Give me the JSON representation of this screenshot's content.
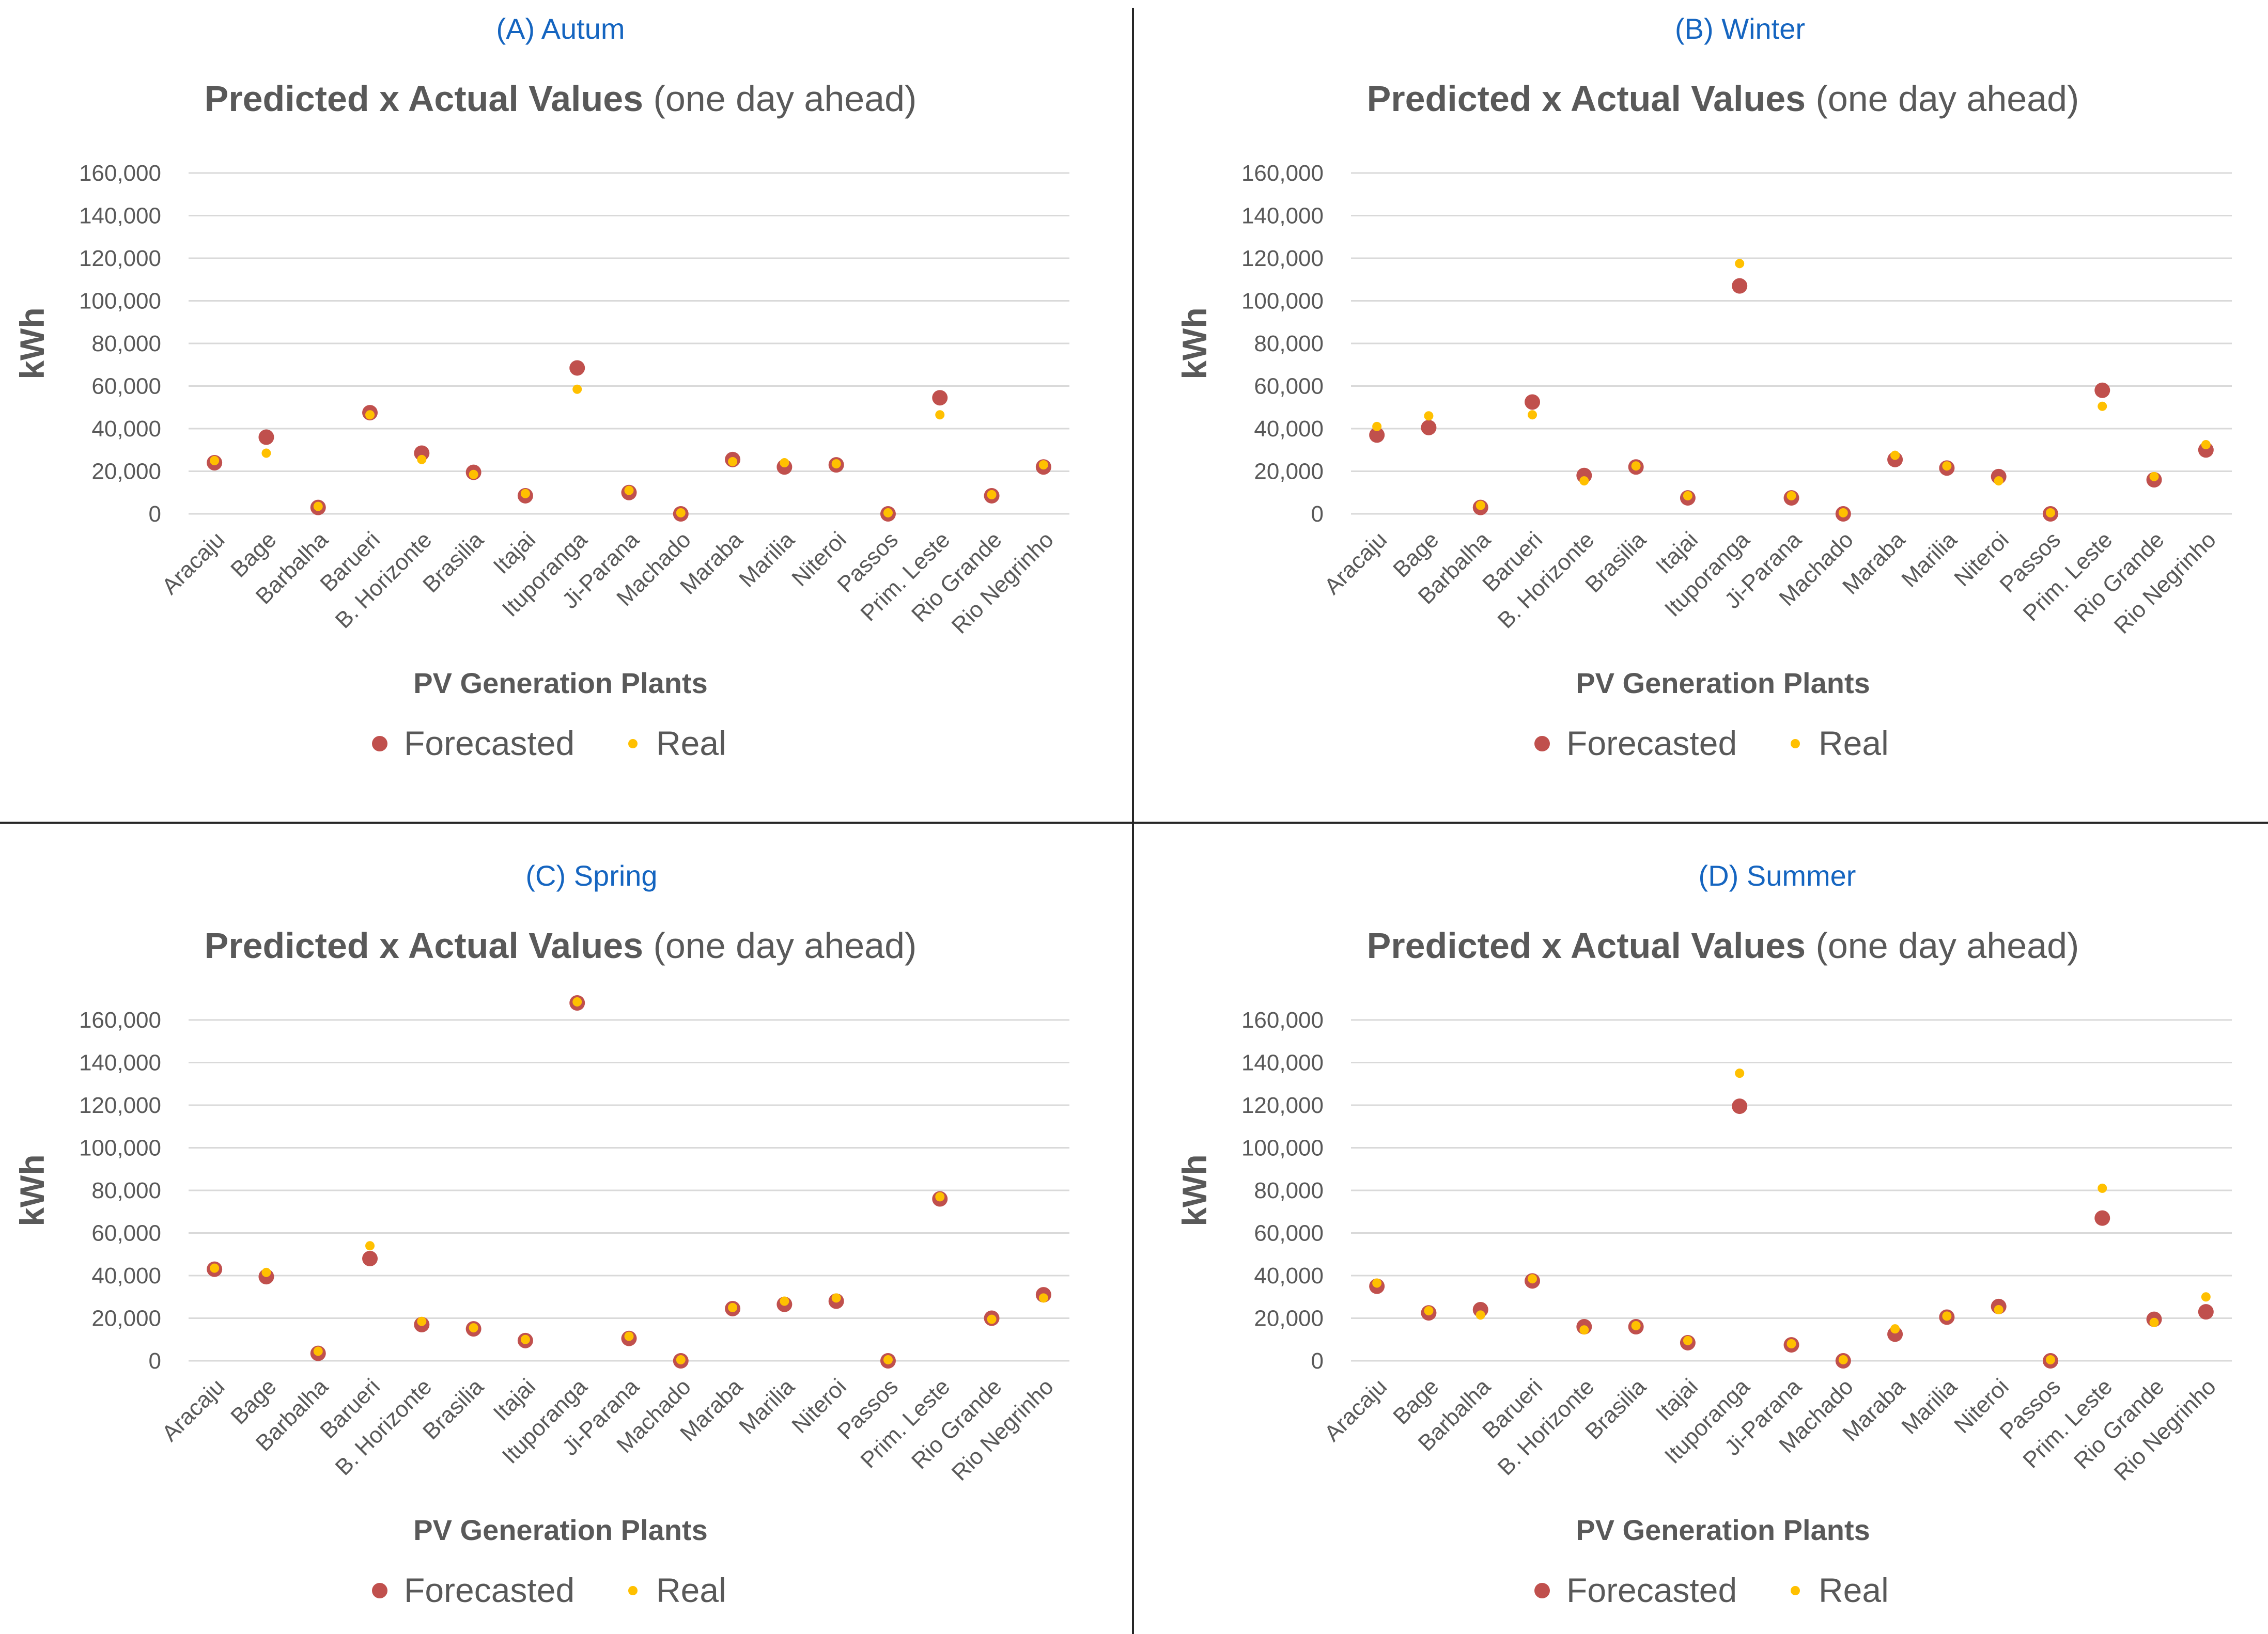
{
  "chart_data": [
    {
      "type": "scatter",
      "panel_label": "(A) Autum",
      "title": "Predicted x Actual Values",
      "title_suffix": "(one day ahead)",
      "xlabel": "PV Generation Plants",
      "ylabel": "kWh",
      "ylim": [
        0,
        160000
      ],
      "yticks": [
        "0",
        "20,000",
        "40,000",
        "60,000",
        "80,000",
        "100,000",
        "120,000",
        "140,000",
        "160,000"
      ],
      "categories": [
        "Aracaju",
        "Bage",
        "Barbalha",
        "Barueri",
        "B. Horizonte",
        "Brasilia",
        "Itajai",
        "Ituporanga",
        "Ji-Parana",
        "Machado",
        "Maraba",
        "Marilia",
        "Niteroi",
        "Passos",
        "Prim. Leste",
        "Rio Grande",
        "Rio Negrinho"
      ],
      "series": [
        {
          "name": "Forecasted",
          "color": "#C0504D",
          "values": [
            24000,
            36000,
            3000,
            47500,
            28500,
            19500,
            8500,
            68500,
            10000,
            0,
            25500,
            22000,
            23000,
            0,
            54500,
            8500,
            22000
          ]
        },
        {
          "name": "Real",
          "color": "#FFC000",
          "values": [
            25000,
            28500,
            3500,
            46500,
            25500,
            18500,
            9500,
            58500,
            11000,
            500,
            24500,
            24000,
            23500,
            500,
            46500,
            9000,
            23000
          ]
        }
      ],
      "legend": "bottom",
      "grid": true
    },
    {
      "type": "scatter",
      "panel_label": "(B) Winter",
      "title": "Predicted x Actual Values",
      "title_suffix": "(one day ahead)",
      "xlabel": "PV Generation Plants",
      "ylabel": "kWh",
      "ylim": [
        0,
        160000
      ],
      "yticks": [
        "0",
        "20,000",
        "40,000",
        "60,000",
        "80,000",
        "100,000",
        "120,000",
        "140,000",
        "160,000"
      ],
      "categories": [
        "Aracaju",
        "Bage",
        "Barbalha",
        "Barueri",
        "B. Horizonte",
        "Brasilia",
        "Itajai",
        "Ituporanga",
        "Ji-Parana",
        "Machado",
        "Maraba",
        "Marilia",
        "Niteroi",
        "Passos",
        "Prim. Leste",
        "Rio Grande",
        "Rio Negrinho"
      ],
      "series": [
        {
          "name": "Forecasted",
          "color": "#C0504D",
          "values": [
            37000,
            40500,
            3000,
            52500,
            18000,
            22000,
            7500,
            107000,
            7500,
            0,
            25500,
            21500,
            17500,
            0,
            58000,
            16000,
            30000
          ]
        },
        {
          "name": "Real",
          "color": "#FFC000",
          "values": [
            41000,
            46000,
            4000,
            46500,
            15500,
            22500,
            8500,
            117500,
            8500,
            500,
            27500,
            22500,
            15500,
            500,
            50500,
            17500,
            32500
          ]
        }
      ],
      "legend": "bottom",
      "grid": true
    },
    {
      "type": "scatter",
      "panel_label": "(C) Spring",
      "title": "Predicted x Actual Values",
      "title_suffix": "(one day ahead)",
      "xlabel": "PV Generation Plants",
      "ylabel": "kWh",
      "ylim": [
        0,
        160000
      ],
      "yticks": [
        "0",
        "20,000",
        "40,000",
        "60,000",
        "80,000",
        "100,000",
        "120,000",
        "140,000",
        "160,000"
      ],
      "categories": [
        "Aracaju",
        "Bage",
        "Barbalha",
        "Barueri",
        "B. Horizonte",
        "Brasilia",
        "Itajai",
        "Ituporanga",
        "Ji-Parana",
        "Machado",
        "Maraba",
        "Marilia",
        "Niteroi",
        "Passos",
        "Prim. Leste",
        "Rio Grande",
        "Rio Negrinho"
      ],
      "series": [
        {
          "name": "Forecasted",
          "color": "#C0504D",
          "values": [
            43000,
            39500,
            3500,
            48000,
            17000,
            15000,
            9500,
            168000,
            10500,
            0,
            24500,
            26500,
            28000,
            0,
            76000,
            20000,
            31000
          ]
        },
        {
          "name": "Real",
          "color": "#FFC000",
          "values": [
            43500,
            41500,
            4500,
            54000,
            18500,
            15500,
            10000,
            168500,
            11500,
            500,
            25000,
            28000,
            29500,
            500,
            77000,
            19500,
            29500
          ]
        }
      ],
      "legend": "bottom",
      "grid": true
    },
    {
      "type": "scatter",
      "panel_label": "(D) Summer",
      "title": "Predicted x Actual Values",
      "title_suffix": "(one day ahead)",
      "xlabel": "PV Generation Plants",
      "ylabel": "kWh",
      "ylim": [
        0,
        160000
      ],
      "yticks": [
        "0",
        "20,000",
        "40,000",
        "60,000",
        "80,000",
        "100,000",
        "120,000",
        "140,000",
        "160,000"
      ],
      "categories": [
        "Aracaju",
        "Bage",
        "Barbalha",
        "Barueri",
        "B. Horizonte",
        "Brasilia",
        "Itajai",
        "Ituporanga",
        "Ji-Parana",
        "Machado",
        "Maraba",
        "Marilia",
        "Niteroi",
        "Passos",
        "Prim. Leste",
        "Rio Grande",
        "Rio Negrinho"
      ],
      "series": [
        {
          "name": "Forecasted",
          "color": "#C0504D",
          "values": [
            35000,
            22500,
            24000,
            37500,
            16000,
            16000,
            8500,
            119500,
            7500,
            0,
            12500,
            20500,
            25500,
            0,
            67000,
            19500,
            23000
          ]
        },
        {
          "name": "Real",
          "color": "#FFC000",
          "values": [
            36500,
            23500,
            21500,
            38500,
            14500,
            16500,
            9500,
            135000,
            8000,
            500,
            15000,
            21000,
            24000,
            500,
            81000,
            18000,
            30000
          ]
        }
      ],
      "legend": "bottom",
      "grid": true
    }
  ]
}
